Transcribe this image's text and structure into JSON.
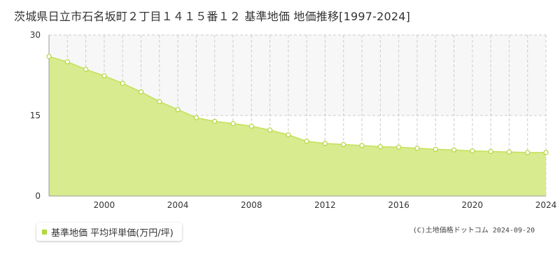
{
  "title": "茨城県日立市石名坂町２丁目１４１５番１２ 基準地価 地価推移[1997-2024]",
  "credit": "(C)土地価格ドットコム 2024-09-20",
  "colors": {
    "fill": "#d8eb8e",
    "line": "#c6e05a",
    "point_fill": "#ffffff",
    "point_stroke": "#b5d640",
    "grid": "#cccccc",
    "upper_band": "#f7f7f7",
    "legend_marker": "#b5d640"
  },
  "chart_data": {
    "type": "area",
    "title": "茨城県日立市石名坂町２丁目１４１５番１２ 基準地価 地価推移[1997-2024]",
    "xlabel": "",
    "ylabel": "",
    "x_ticks": [
      2000,
      2004,
      2008,
      2012,
      2016,
      2020,
      2024
    ],
    "y_ticks": [
      0,
      15,
      30
    ],
    "xlim": [
      1997,
      2024
    ],
    "ylim": [
      0,
      30
    ],
    "grid": "on",
    "legend_position": "bottom-left",
    "series": [
      {
        "name": "基準地価 平均坪単価(万円/坪)",
        "x": [
          1997,
          1998,
          1999,
          2000,
          2001,
          2002,
          2003,
          2004,
          2005,
          2006,
          2007,
          2008,
          2009,
          2010,
          2011,
          2012,
          2013,
          2014,
          2015,
          2016,
          2017,
          2018,
          2019,
          2020,
          2021,
          2022,
          2023,
          2024
        ],
        "values": [
          26.0,
          25.0,
          23.6,
          22.4,
          21.0,
          19.4,
          17.6,
          16.1,
          14.6,
          13.9,
          13.5,
          13.0,
          12.3,
          11.4,
          10.2,
          9.8,
          9.6,
          9.4,
          9.2,
          9.1,
          8.9,
          8.7,
          8.6,
          8.4,
          8.3,
          8.2,
          8.1,
          8.1
        ]
      }
    ]
  }
}
